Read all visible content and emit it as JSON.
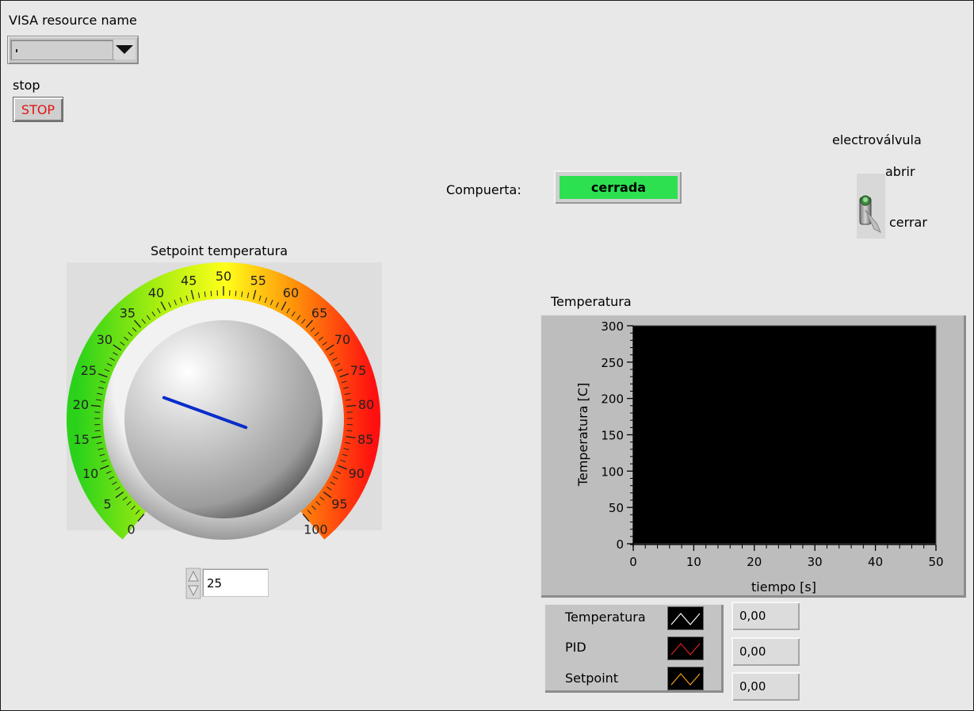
{
  "visa": {
    "label": "VISA resource name"
  },
  "stop": {
    "label": "stop",
    "button_text": "STOP"
  },
  "electrovalvula": {
    "label": "electroválvula",
    "open_label": "abrir",
    "close_label": "cerrar"
  },
  "compuerta": {
    "label": "Compuerta:",
    "value": "cerrada",
    "color": "#2de050"
  },
  "setpoint": {
    "label": "Setpoint temperatura",
    "value": 25,
    "value_text": "25",
    "min": 0,
    "max": 100,
    "scale_labels": [
      "0",
      "5",
      "10",
      "15",
      "20",
      "25",
      "30",
      "35",
      "40",
      "45",
      "50",
      "55",
      "60",
      "65",
      "70",
      "75",
      "80",
      "85",
      "90",
      "95",
      "100"
    ],
    "needle_color": "#0a2dc9"
  },
  "chart_title": "Temperatura",
  "chart_data": {
    "type": "line",
    "xlabel": "tiempo [s]",
    "ylabel": "Temperatura [C]",
    "xlim": [
      0,
      50
    ],
    "ylim": [
      0,
      300
    ],
    "x_ticks": [
      "0",
      "10",
      "20",
      "30",
      "40",
      "50"
    ],
    "y_ticks": [
      "0",
      "50",
      "100",
      "150",
      "200",
      "250",
      "300"
    ],
    "plot_background": "#000000",
    "series": [
      {
        "name": "Temperatura",
        "color": "#ffffff",
        "x": [],
        "y": []
      },
      {
        "name": "PID",
        "color": "#e02020",
        "x": [],
        "y": []
      },
      {
        "name": "Setpoint",
        "color": "#f2a01e",
        "x": [],
        "y": []
      }
    ]
  },
  "legend": {
    "items": [
      {
        "name": "Temperatura",
        "value": "0,00"
      },
      {
        "name": "PID",
        "value": "0,00"
      },
      {
        "name": "Setpoint",
        "value": "0,00"
      }
    ]
  }
}
